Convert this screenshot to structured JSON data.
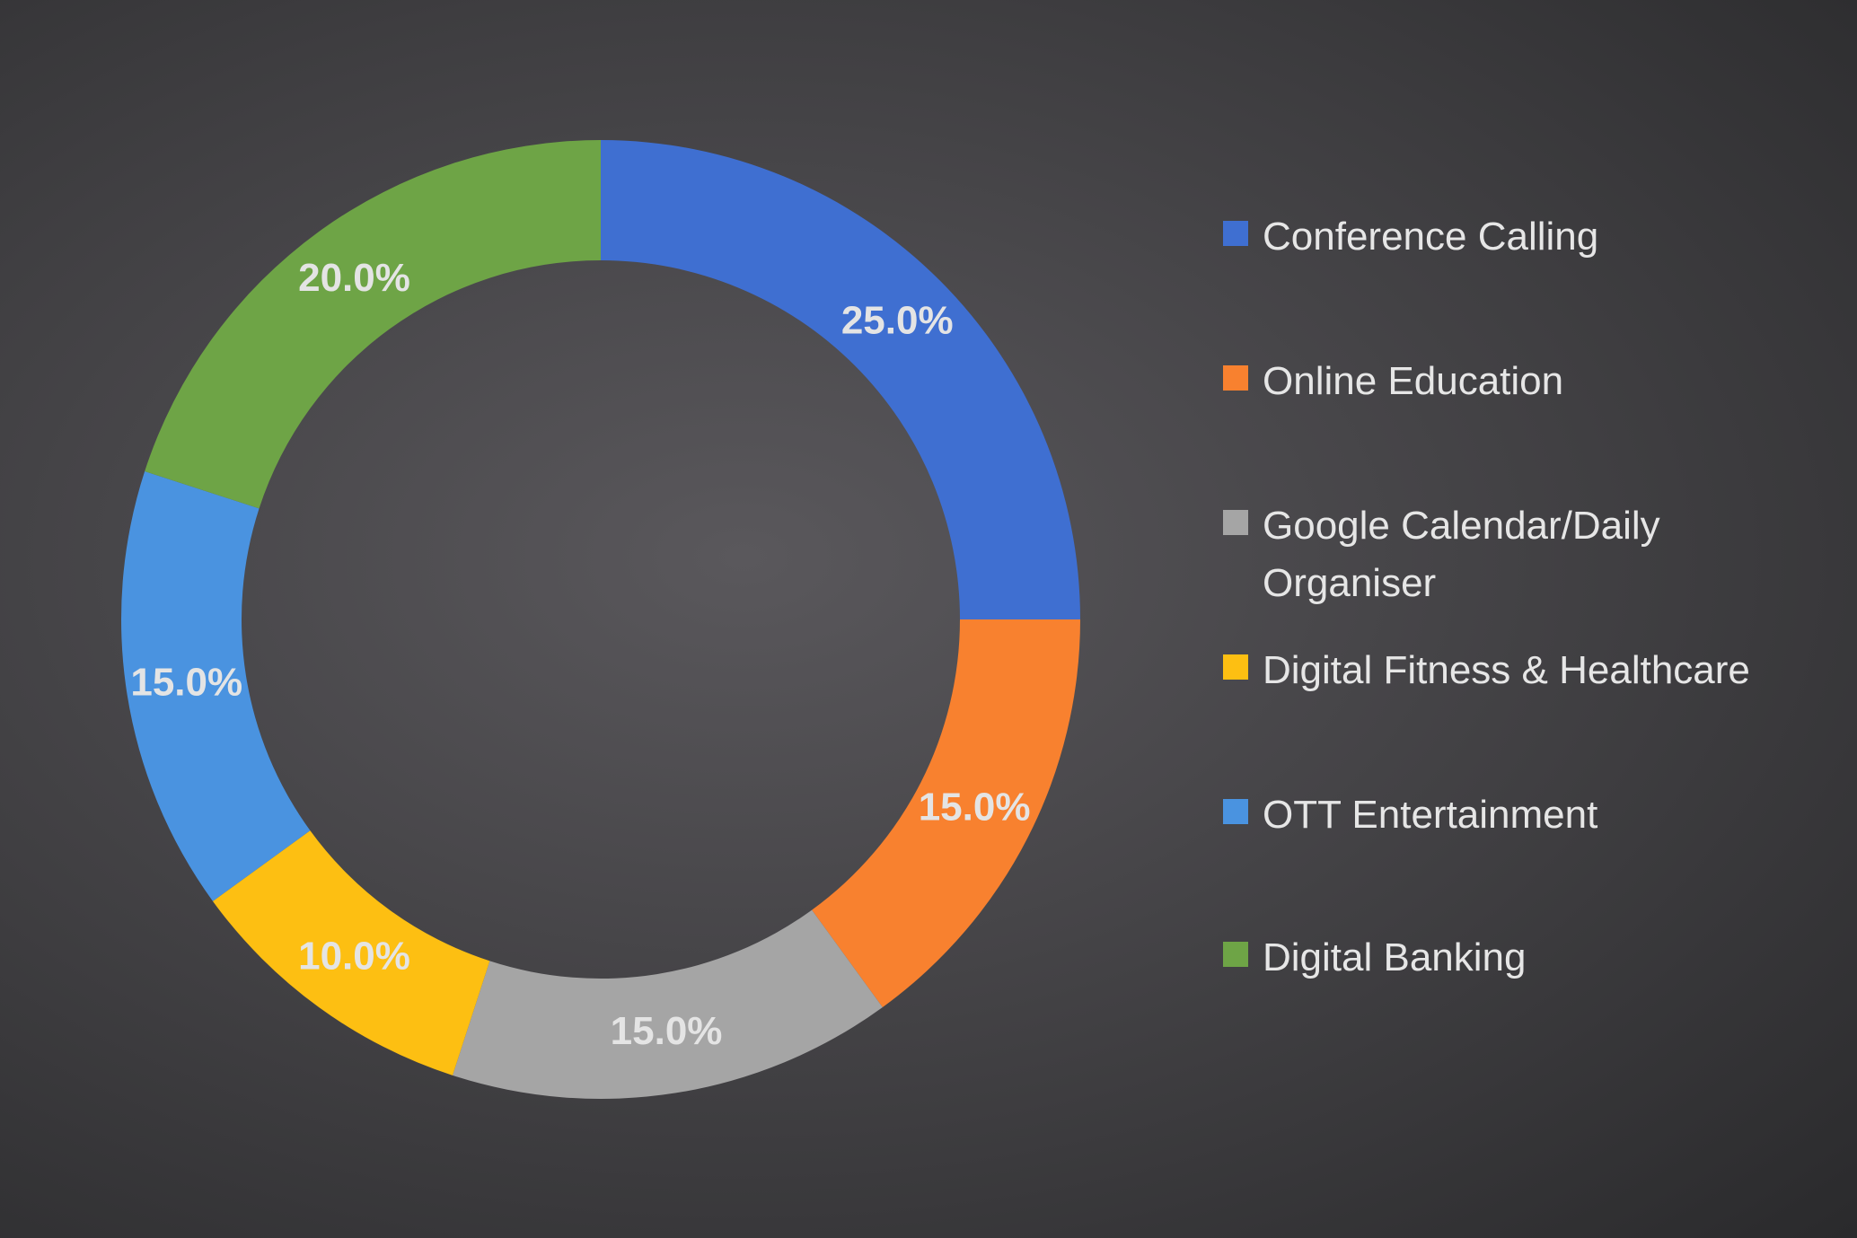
{
  "chart_data": {
    "type": "donut",
    "categories": [
      "Conference Calling",
      "Online Education",
      "Google Calendar/Daily Organiser",
      "Digital Fitness & Healthcare",
      "OTT Entertainment",
      "Digital Banking"
    ],
    "values": [
      25,
      15,
      15,
      10,
      15,
      20
    ],
    "value_labels": [
      "25.0%",
      "15.0%",
      "15.0%",
      "10.0%",
      "15.0%",
      "20.0%"
    ],
    "colors": [
      "#3f6fd1",
      "#f8812f",
      "#a5a5a5",
      "#fdbf12",
      "#4a93e0",
      "#6ea446"
    ],
    "legend": "right"
  }
}
